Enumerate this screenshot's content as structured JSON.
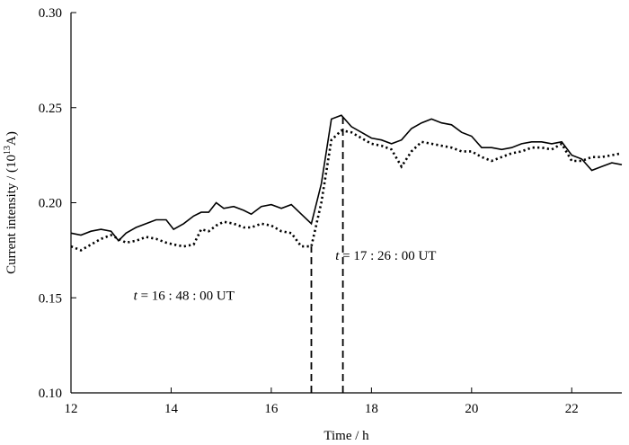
{
  "chart_data": {
    "type": "line",
    "title": "",
    "xlabel": "Time / h",
    "ylabel": "Current intensity / (10",
    "ylabel_sup": "13",
    "ylabel_tail": "A)",
    "xlim": [
      12,
      23
    ],
    "ylim": [
      0.1,
      0.3
    ],
    "xticks": [
      12,
      14,
      16,
      18,
      20,
      22
    ],
    "xtick_labels": [
      "12",
      "14",
      "16",
      "18",
      "20",
      "22"
    ],
    "yticks": [
      0.1,
      0.15,
      0.2,
      0.25,
      0.3
    ],
    "ytick_labels": [
      "0.10",
      "0.15",
      "0.20",
      "0.25",
      "0.30"
    ],
    "grid": false,
    "series": [
      {
        "style": "solid",
        "x": [
          12.0,
          12.2,
          12.4,
          12.6,
          12.8,
          12.95,
          13.1,
          13.3,
          13.5,
          13.7,
          13.9,
          14.05,
          14.25,
          14.45,
          14.6,
          14.75,
          14.9,
          15.05,
          15.25,
          15.45,
          15.6,
          15.8,
          16.0,
          16.2,
          16.4,
          16.6,
          16.8,
          17.0,
          17.2,
          17.4,
          17.6,
          17.8,
          18.0,
          18.2,
          18.4,
          18.6,
          18.8,
          19.0,
          19.2,
          19.4,
          19.6,
          19.8,
          20.0,
          20.2,
          20.4,
          20.6,
          20.8,
          21.0,
          21.2,
          21.4,
          21.6,
          21.8,
          22.0,
          22.2,
          22.4,
          22.6,
          22.8,
          23.0
        ],
        "y": [
          0.184,
          0.183,
          0.185,
          0.186,
          0.185,
          0.18,
          0.184,
          0.187,
          0.189,
          0.191,
          0.191,
          0.186,
          0.189,
          0.193,
          0.195,
          0.195,
          0.2,
          0.197,
          0.198,
          0.196,
          0.194,
          0.198,
          0.199,
          0.197,
          0.199,
          0.194,
          0.189,
          0.21,
          0.244,
          0.246,
          0.24,
          0.237,
          0.234,
          0.233,
          0.231,
          0.233,
          0.239,
          0.242,
          0.244,
          0.242,
          0.241,
          0.237,
          0.235,
          0.229,
          0.229,
          0.228,
          0.229,
          0.231,
          0.232,
          0.232,
          0.231,
          0.232,
          0.225,
          0.223,
          0.217,
          0.219,
          0.221,
          0.22
        ]
      },
      {
        "style": "dotted",
        "x": [
          12.0,
          12.2,
          12.4,
          12.6,
          12.8,
          12.95,
          13.1,
          13.3,
          13.5,
          13.7,
          13.9,
          14.05,
          14.25,
          14.45,
          14.6,
          14.75,
          14.9,
          15.05,
          15.25,
          15.45,
          15.6,
          15.8,
          16.0,
          16.2,
          16.4,
          16.6,
          16.8,
          17.0,
          17.2,
          17.4,
          17.6,
          17.8,
          18.0,
          18.2,
          18.4,
          18.6,
          18.8,
          19.0,
          19.2,
          19.4,
          19.6,
          19.8,
          20.0,
          20.2,
          20.4,
          20.6,
          20.8,
          21.0,
          21.2,
          21.4,
          21.6,
          21.8,
          22.0,
          22.2,
          22.4,
          22.6,
          22.8,
          23.0
        ],
        "y": [
          0.177,
          0.175,
          0.178,
          0.181,
          0.183,
          0.181,
          0.179,
          0.18,
          0.182,
          0.181,
          0.179,
          0.178,
          0.177,
          0.178,
          0.186,
          0.185,
          0.188,
          0.19,
          0.189,
          0.187,
          0.187,
          0.189,
          0.188,
          0.185,
          0.184,
          0.177,
          0.177,
          0.2,
          0.233,
          0.238,
          0.237,
          0.234,
          0.231,
          0.23,
          0.228,
          0.219,
          0.227,
          0.232,
          0.231,
          0.23,
          0.229,
          0.227,
          0.227,
          0.224,
          0.222,
          0.224,
          0.226,
          0.227,
          0.229,
          0.229,
          0.228,
          0.231,
          0.222,
          0.222,
          0.224,
          0.224,
          0.225,
          0.226
        ]
      }
    ],
    "markers": [
      {
        "x": 16.8,
        "label_prefix": "t",
        "label_value": " = 16 : 48 : 00 UT",
        "label_at": [
          13.25,
          0.149
        ]
      },
      {
        "x": 17.43,
        "label_prefix": "t",
        "label_value": " = 17 : 26 : 00 UT",
        "label_at": [
          17.28,
          0.17
        ]
      }
    ]
  }
}
